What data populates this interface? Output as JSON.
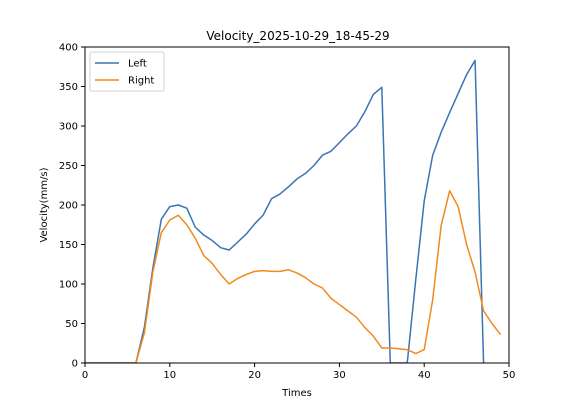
{
  "chart_data": {
    "type": "line",
    "title": "Velocity_2025-10-29_18-45-29",
    "xlabel": "Times",
    "ylabel": "Velocity(mm/s)",
    "xlim": [
      0,
      50
    ],
    "ylim": [
      0,
      400
    ],
    "xticks": [
      0,
      10,
      20,
      30,
      40,
      50
    ],
    "yticks": [
      0,
      50,
      100,
      150,
      200,
      250,
      300,
      350,
      400
    ],
    "grid": false,
    "legend_position": "top-left",
    "x": [
      0,
      1,
      2,
      3,
      4,
      5,
      6,
      7,
      8,
      9,
      10,
      11,
      12,
      13,
      14,
      15,
      16,
      17,
      18,
      19,
      20,
      21,
      22,
      23,
      24,
      25,
      26,
      27,
      28,
      29,
      30,
      31,
      32,
      33,
      34,
      35,
      36,
      37,
      38,
      39,
      40,
      41,
      42,
      43,
      44,
      45,
      46,
      47,
      48,
      49
    ],
    "series": [
      {
        "name": "Left",
        "color": "#3a74b4",
        "values": [
          0,
          0,
          0,
          0,
          0,
          0,
          0,
          45,
          120,
          182,
          198,
          200,
          196,
          172,
          162,
          155,
          146,
          143,
          153,
          163,
          176,
          187,
          208,
          214,
          223,
          233,
          240,
          250,
          263,
          268,
          279,
          290,
          300,
          318,
          340,
          349,
          0,
          0,
          0,
          105,
          205,
          263,
          292,
          317,
          341,
          365,
          383,
          0,
          null,
          null
        ]
      },
      {
        "name": "Right",
        "color": "#f2891d",
        "values": [
          0,
          0,
          0,
          0,
          0,
          0,
          0,
          38,
          115,
          165,
          181,
          187,
          175,
          158,
          136,
          126,
          112,
          100,
          107,
          112,
          116,
          117,
          116,
          116,
          118,
          114,
          108,
          100,
          95,
          82,
          74,
          66,
          58,
          45,
          34,
          19,
          19,
          18,
          17,
          12,
          17,
          80,
          174,
          218,
          198,
          150,
          115,
          66,
          50,
          36
        ]
      }
    ]
  }
}
